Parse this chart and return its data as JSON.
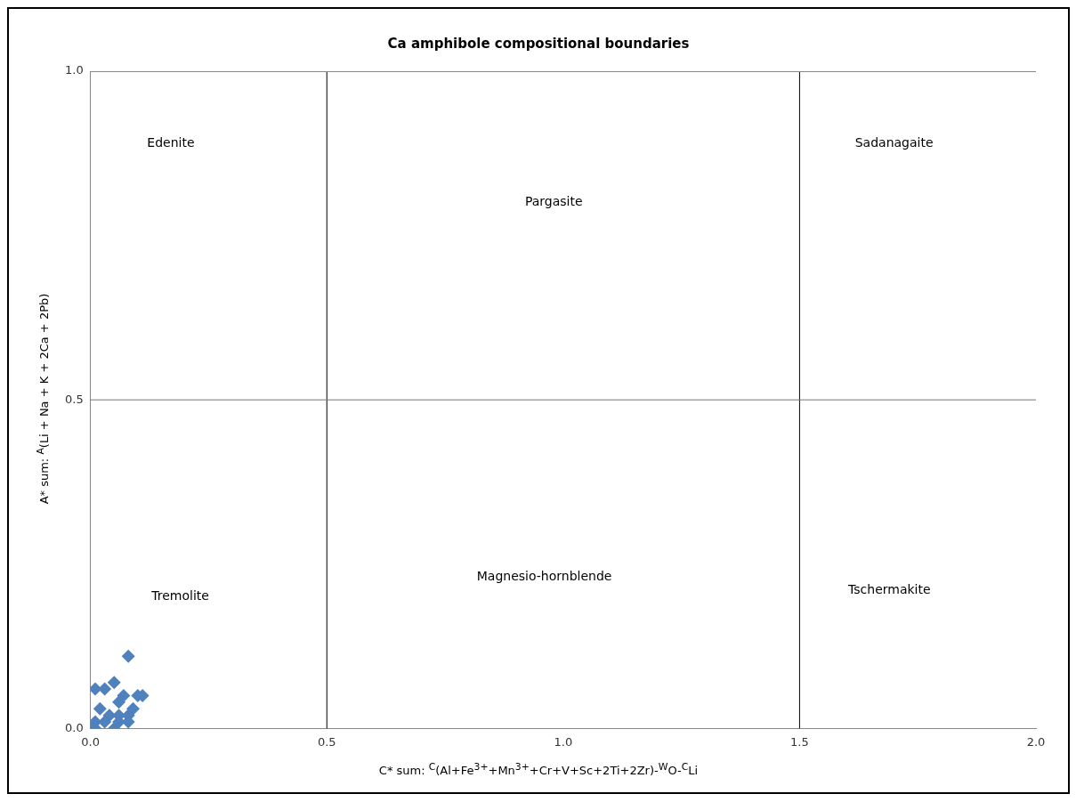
{
  "chart_data": {
    "type": "scatter",
    "title": "Ca amphibole compositional boundaries",
    "xlabel": "C* sum: $^{C}$(Al+Fe$^{3+}$+Mn$^{3+}$+Cr+V+Sc+2Ti+2Zr)-$^{W}$O-$^{C}$Li",
    "ylabel": "A* sum: $^{A}$(Li + Na + K + 2Ca + 2Pb)",
    "series": [
      {
        "color": "#4f81bd",
        "x": [
          0.08,
          0.01,
          0.03,
          0.05,
          0.1,
          0.11,
          0.07,
          0.02,
          0.09,
          0.06,
          0.08,
          0.06,
          0.04,
          0.08,
          0.03,
          0.01,
          0.0,
          0.01,
          0.05,
          0.06
        ],
        "values": [
          0.11,
          0.06,
          0.06,
          0.07,
          0.05,
          0.05,
          0.05,
          0.03,
          0.03,
          0.04,
          0.02,
          0.02,
          0.02,
          0.01,
          0.01,
          0.01,
          0.0,
          0.0,
          0.0,
          0.01
        ]
      }
    ],
    "marker": "diamond",
    "xlim": [
      0,
      2
    ],
    "ylim": [
      0,
      1
    ],
    "xticks": [
      {
        "value": 0,
        "label": "0.0"
      },
      {
        "value": 0.5,
        "label": "0.5"
      },
      {
        "value": 1,
        "label": "1.0"
      },
      {
        "value": 1.5,
        "label": "1.5"
      },
      {
        "value": 2,
        "label": "2.0"
      }
    ],
    "yticks": [
      {
        "value": 0,
        "label": "0.0"
      },
      {
        "value": 0.5,
        "label": "0.5"
      },
      {
        "value": 1,
        "label": "1.0"
      }
    ],
    "ref_lines": [
      {
        "axis": "x",
        "value": 0.5,
        "color": "#000000"
      },
      {
        "axis": "x",
        "value": 1.5,
        "color": "#000000"
      },
      {
        "axis": "y",
        "value": 0.5,
        "color": "#777777"
      }
    ],
    "annotations": [
      "Edenite",
      "Pargasite",
      "Sadanagaite",
      "Tremolite",
      "Magnesio-hornblende",
      "Tschermakite"
    ],
    "legend": false
  }
}
